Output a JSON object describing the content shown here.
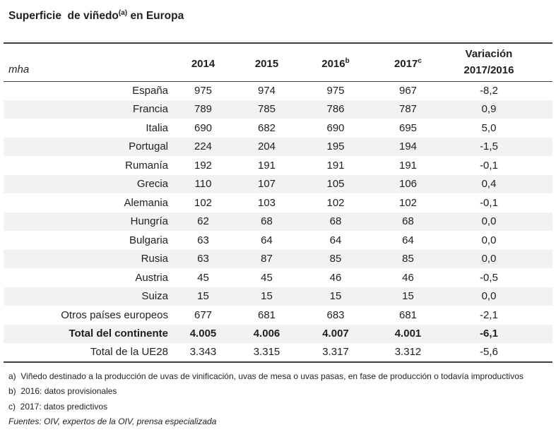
{
  "title": {
    "prefix": "Superficie  de viñedo",
    "marker": "(a)",
    "suffix": " en Europa"
  },
  "table": {
    "unit_label": "mha",
    "year_columns": [
      {
        "label": "2014",
        "marker": ""
      },
      {
        "label": "2015",
        "marker": ""
      },
      {
        "label": "2016",
        "marker": "b"
      },
      {
        "label": "2017",
        "marker": "c"
      }
    ],
    "variation_column": {
      "line1": "Variación",
      "line2": "2017/2016"
    },
    "rows": [
      {
        "label": "España",
        "values": [
          "975",
          "974",
          "975",
          "967",
          "-8,2"
        ],
        "bold": false,
        "shaded": false
      },
      {
        "label": "Francia",
        "values": [
          "789",
          "785",
          "786",
          "787",
          "0,9"
        ],
        "bold": false,
        "shaded": true
      },
      {
        "label": "Italia",
        "values": [
          "690",
          "682",
          "690",
          "695",
          "5,0"
        ],
        "bold": false,
        "shaded": false
      },
      {
        "label": "Portugal",
        "values": [
          "224",
          "204",
          "195",
          "194",
          "-1,5"
        ],
        "bold": false,
        "shaded": true
      },
      {
        "label": "Rumanía",
        "values": [
          "192",
          "191",
          "191",
          "191",
          "-0,1"
        ],
        "bold": false,
        "shaded": false
      },
      {
        "label": "Grecia",
        "values": [
          "110",
          "107",
          "105",
          "106",
          "0,4"
        ],
        "bold": false,
        "shaded": true
      },
      {
        "label": "Alemania",
        "values": [
          "102",
          "103",
          "102",
          "102",
          "-0,1"
        ],
        "bold": false,
        "shaded": false
      },
      {
        "label": "Hungría",
        "values": [
          "62",
          "68",
          "68",
          "68",
          "0,0"
        ],
        "bold": false,
        "shaded": true
      },
      {
        "label": "Bulgaria",
        "values": [
          "63",
          "64",
          "64",
          "64",
          "0,0"
        ],
        "bold": false,
        "shaded": false
      },
      {
        "label": "Rusia",
        "values": [
          "63",
          "87",
          "85",
          "85",
          "0,0"
        ],
        "bold": false,
        "shaded": true
      },
      {
        "label": "Austria",
        "values": [
          "45",
          "45",
          "46",
          "46",
          "-0,5"
        ],
        "bold": false,
        "shaded": false
      },
      {
        "label": "Suiza",
        "values": [
          "15",
          "15",
          "15",
          "15",
          "0,0"
        ],
        "bold": false,
        "shaded": true
      },
      {
        "label": "Otros países europeos",
        "values": [
          "677",
          "681",
          "683",
          "681",
          "-2,1"
        ],
        "bold": false,
        "shaded": false
      },
      {
        "label": "Total del continente",
        "values": [
          "4.005",
          "4.006",
          "4.007",
          "4.001",
          "-6,1"
        ],
        "bold": true,
        "shaded": true
      },
      {
        "label": "Total de la UE28",
        "values": [
          "3.343",
          "3.315",
          "3.317",
          "3.312",
          "-5,6"
        ],
        "bold": false,
        "shaded": false
      }
    ]
  },
  "footnotes": [
    "a)  Viñedo destinado a la producción de uvas de vinificación, uvas de mesa o uvas pasas, en fase de producción o todavía improductivos",
    "b)  2016: datos provisionales",
    "c)  2017: datos predictivos"
  ],
  "sources": "Fuentes: OIV, expertos de la OIV, prensa especializada",
  "colors": {
    "row_shade": "#f2f2f2",
    "text": "#1f1f1f",
    "rule": "#404040"
  }
}
